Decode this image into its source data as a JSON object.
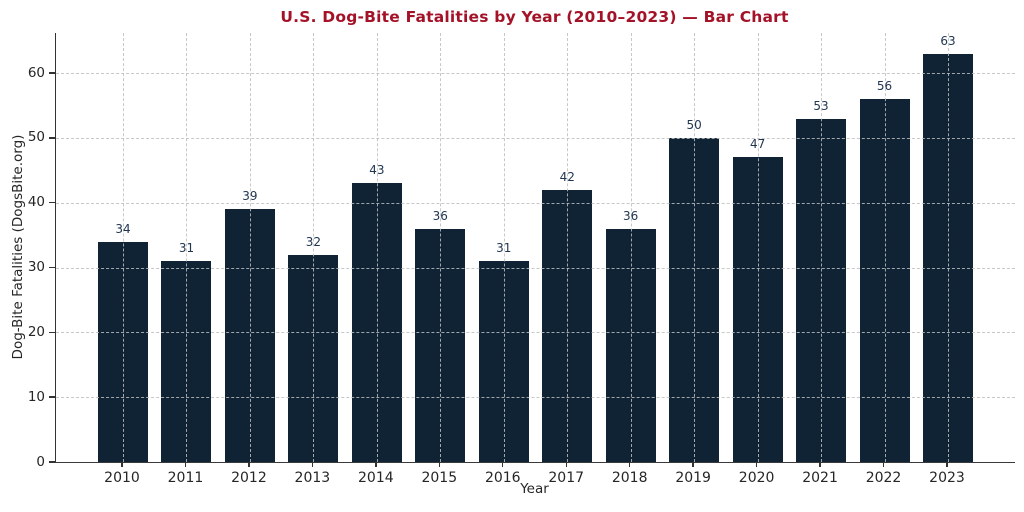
{
  "chart_data": {
    "type": "bar",
    "title": "U.S. Dog-Bite Fatalities by Year (2010–2023) — Bar Chart",
    "xlabel": "Year",
    "ylabel": "Dog-Bite Fatalities (DogsBite.org)",
    "categories": [
      "2010",
      "2011",
      "2012",
      "2013",
      "2014",
      "2015",
      "2016",
      "2017",
      "2018",
      "2019",
      "2020",
      "2021",
      "2022",
      "2023"
    ],
    "values": [
      34,
      31,
      39,
      32,
      43,
      36,
      31,
      42,
      36,
      50,
      47,
      53,
      56,
      63
    ],
    "yticks": [
      0,
      10,
      20,
      30,
      40,
      50,
      60
    ],
    "ylim": [
      0,
      66.2
    ],
    "grid": "both-axes-dashed",
    "legend": "none",
    "colors": {
      "bar": "#0f2334",
      "title": "#a41228",
      "value_label": "#1f3550",
      "tick_label": "#262626",
      "gridline": "#bebebe",
      "spine": "#333333"
    }
  }
}
